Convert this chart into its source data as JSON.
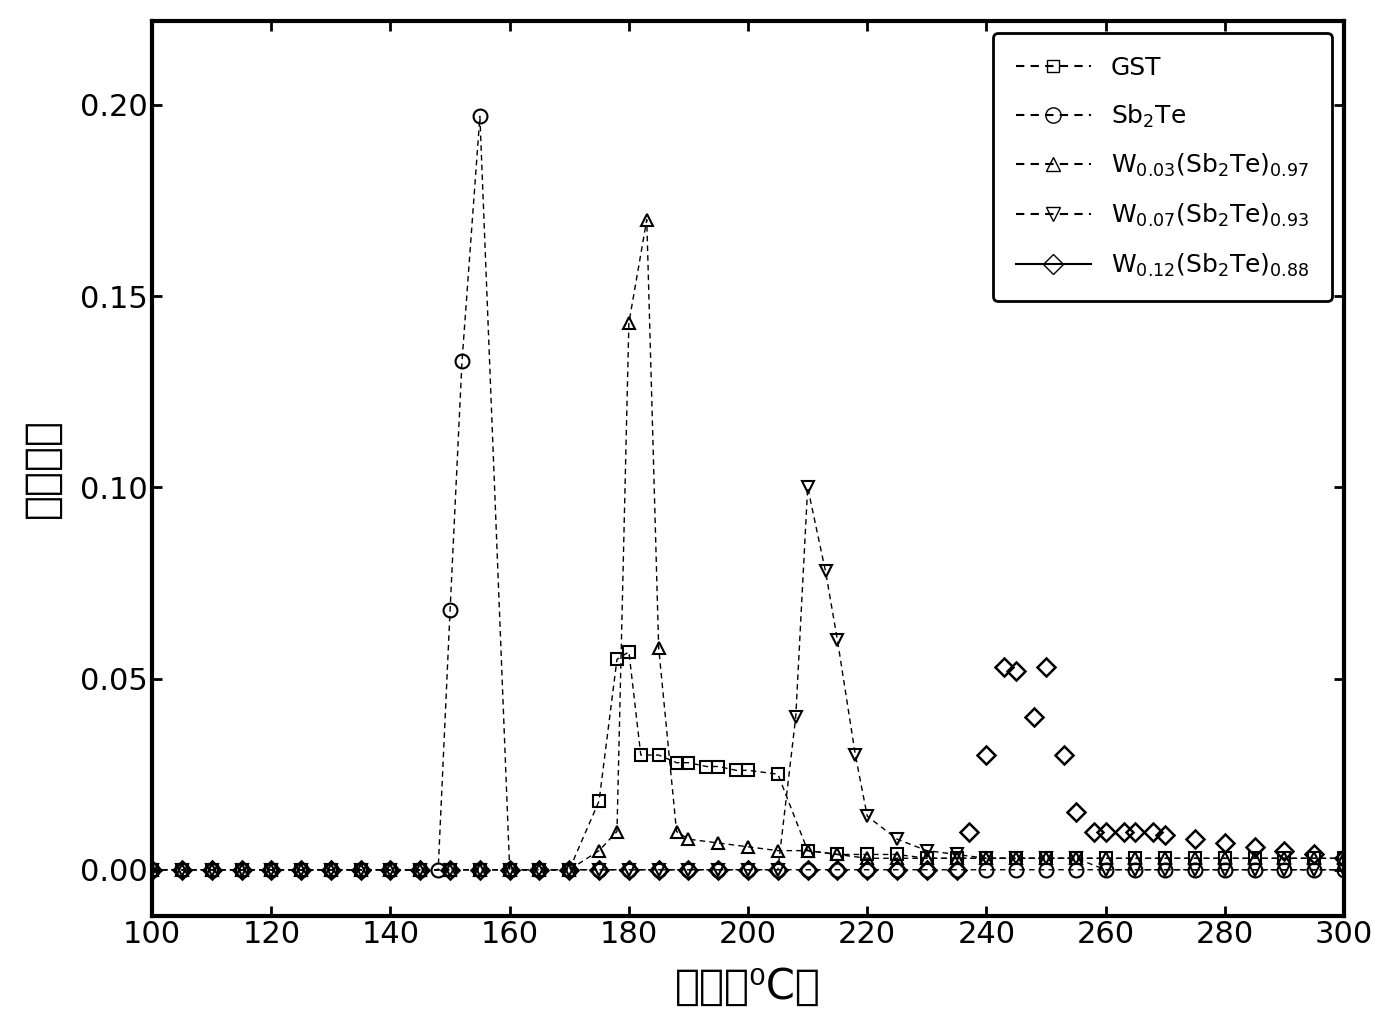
{
  "xlabel": "温度（⁰C）",
  "ylabel": "结晶速率",
  "xlim": [
    100,
    300
  ],
  "ylim": [
    -0.012,
    0.222
  ],
  "xticks": [
    100,
    120,
    140,
    160,
    180,
    200,
    220,
    240,
    260,
    280,
    300
  ],
  "yticks": [
    0.0,
    0.05,
    0.1,
    0.15,
    0.2
  ],
  "bg_color": "#ffffff",
  "series": {
    "GST": {
      "x": [
        100,
        105,
        110,
        115,
        120,
        125,
        130,
        135,
        140,
        145,
        150,
        155,
        160,
        165,
        170,
        175,
        178,
        180,
        182,
        185,
        188,
        190,
        193,
        195,
        198,
        200,
        205,
        210,
        215,
        220,
        225,
        230,
        235,
        240,
        245,
        250,
        255,
        260,
        265,
        270,
        275,
        280,
        285,
        290,
        295,
        300
      ],
      "y": [
        0.0,
        0.0,
        0.0,
        0.0,
        0.0,
        0.0,
        0.0,
        0.0,
        0.0,
        0.0,
        0.0,
        0.0,
        0.0,
        0.0,
        0.0,
        0.018,
        0.055,
        0.057,
        0.03,
        0.03,
        0.028,
        0.028,
        0.027,
        0.027,
        0.026,
        0.026,
        0.025,
        0.005,
        0.004,
        0.004,
        0.004,
        0.003,
        0.003,
        0.003,
        0.003,
        0.003,
        0.003,
        0.003,
        0.003,
        0.003,
        0.003,
        0.003,
        0.003,
        0.003,
        0.003,
        0.003
      ],
      "marker": "s",
      "linestyle": "--",
      "color": "black",
      "markersize": 8,
      "fillstyle": "none"
    },
    "Sb2Te": {
      "x": [
        100,
        105,
        110,
        115,
        120,
        125,
        130,
        135,
        140,
        145,
        148,
        150,
        152,
        155,
        160,
        165,
        170,
        175,
        180,
        185,
        190,
        195,
        200,
        205,
        210,
        215,
        220,
        225,
        230,
        235,
        240,
        245,
        250,
        255,
        260,
        265,
        270,
        275,
        280,
        285,
        290,
        295,
        300
      ],
      "y": [
        0.0,
        0.0,
        0.0,
        0.0,
        0.0,
        0.0,
        0.0,
        0.0,
        0.0,
        0.0,
        0.0,
        0.068,
        0.133,
        0.197,
        0.0,
        0.0,
        0.0,
        0.0,
        0.0,
        0.0,
        0.0,
        0.0,
        0.0,
        0.0,
        0.0,
        0.0,
        0.0,
        0.0,
        0.0,
        0.0,
        0.0,
        0.0,
        0.0,
        0.0,
        0.0,
        0.0,
        0.0,
        0.0,
        0.0,
        0.0,
        0.0,
        0.0,
        0.0
      ],
      "marker": "o",
      "linestyle": "--",
      "color": "black",
      "markersize": 10,
      "fillstyle": "none"
    },
    "W003": {
      "x": [
        100,
        105,
        110,
        115,
        120,
        125,
        130,
        135,
        140,
        145,
        150,
        155,
        160,
        165,
        170,
        175,
        178,
        180,
        183,
        185,
        188,
        190,
        195,
        200,
        205,
        210,
        215,
        220,
        225,
        230,
        235,
        240,
        245,
        250,
        255,
        260,
        265,
        270,
        275,
        280,
        285,
        290,
        295,
        300
      ],
      "y": [
        0.0,
        0.0,
        0.0,
        0.0,
        0.0,
        0.0,
        0.0,
        0.0,
        0.0,
        0.0,
        0.0,
        0.0,
        0.0,
        0.0,
        0.0,
        0.005,
        0.01,
        0.143,
        0.17,
        0.058,
        0.01,
        0.008,
        0.007,
        0.006,
        0.005,
        0.005,
        0.004,
        0.003,
        0.003,
        0.003,
        0.003,
        0.003,
        0.003,
        0.003,
        0.003,
        0.003,
        0.003,
        0.003,
        0.003,
        0.003,
        0.003,
        0.003,
        0.003,
        0.003
      ],
      "marker": "^",
      "linestyle": "--",
      "color": "black",
      "markersize": 9,
      "fillstyle": "none"
    },
    "W007": {
      "x": [
        100,
        105,
        110,
        115,
        120,
        125,
        130,
        135,
        140,
        145,
        150,
        155,
        160,
        165,
        170,
        175,
        180,
        185,
        190,
        195,
        200,
        205,
        208,
        210,
        213,
        215,
        218,
        220,
        225,
        230,
        235,
        240,
        245,
        250,
        255,
        260,
        265,
        270,
        275,
        280,
        285,
        290,
        295,
        300
      ],
      "y": [
        0.0,
        0.0,
        0.0,
        0.0,
        0.0,
        0.0,
        0.0,
        0.0,
        0.0,
        0.0,
        0.0,
        0.0,
        0.0,
        0.0,
        0.0,
        0.0,
        0.0,
        0.0,
        0.0,
        0.0,
        0.0,
        0.0,
        0.04,
        0.1,
        0.078,
        0.06,
        0.03,
        0.014,
        0.008,
        0.005,
        0.004,
        0.003,
        0.003,
        0.003,
        0.003,
        0.0,
        0.0,
        0.0,
        0.0,
        0.0,
        0.0,
        0.0,
        0.0,
        0.0
      ],
      "marker": "v",
      "linestyle": "--",
      "color": "black",
      "markersize": 9,
      "fillstyle": "none"
    },
    "W012": {
      "x": [
        100,
        105,
        110,
        115,
        120,
        125,
        130,
        135,
        140,
        145,
        150,
        155,
        160,
        165,
        170,
        175,
        180,
        185,
        190,
        195,
        200,
        205,
        210,
        215,
        220,
        225,
        230,
        235,
        237,
        240,
        243,
        245,
        248,
        250,
        253,
        255,
        258,
        260,
        263,
        265,
        268,
        270,
        275,
        280,
        285,
        290,
        295,
        300
      ],
      "y": [
        0.0,
        0.0,
        0.0,
        0.0,
        0.0,
        0.0,
        0.0,
        0.0,
        0.0,
        0.0,
        0.0,
        0.0,
        0.0,
        0.0,
        0.0,
        0.0,
        0.0,
        0.0,
        0.0,
        0.0,
        0.0,
        0.0,
        0.0,
        0.0,
        0.0,
        0.0,
        0.0,
        0.0,
        0.01,
        0.03,
        0.053,
        0.052,
        0.04,
        0.053,
        0.03,
        0.015,
        0.01,
        0.01,
        0.01,
        0.01,
        0.01,
        0.009,
        0.008,
        0.007,
        0.006,
        0.005,
        0.004,
        0.003
      ],
      "marker": "D",
      "linestyle": "none",
      "color": "black",
      "markersize": 9,
      "fillstyle": "none"
    }
  }
}
